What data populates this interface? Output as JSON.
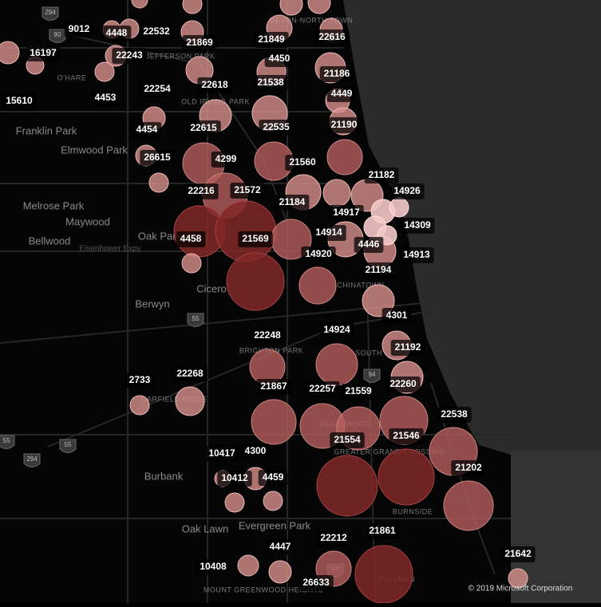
{
  "map": {
    "places": [
      "Franklin Park",
      "Elmwood Park",
      "Melrose Park",
      "Maywood",
      "Bellwood",
      "Oak Park",
      "Berwyn",
      "Cicero",
      "Burbank",
      "Oak Lawn",
      "Evergreen Park",
      "O'HARE",
      "JEFFERSON PARK",
      "OLD IRVING PARK",
      "CHINATOWN",
      "BRIGHTON PARK",
      "GARFIELD RIDGE",
      "ENGLEWOOD",
      "GREATER GRAND CROSSING",
      "BURNSIDE",
      "PULLMAN",
      "SOUTH",
      "Eisenhower Expy",
      "MOUNT GREENWOOD HEIGHTS",
      "DEVON-NORTH TOWN"
    ],
    "shields": [
      "294",
      "90",
      "55",
      "94",
      "55",
      "294",
      "55",
      "57"
    ],
    "bubble_labels": [
      "9012",
      "4448",
      "22532",
      "21869",
      "21849",
      "22616",
      "16197",
      "22243",
      "4450",
      "21186",
      "15610",
      "4453",
      "22254",
      "22618",
      "21538",
      "4449",
      "21190",
      "4454",
      "22615",
      "22535",
      "26615",
      "4299",
      "21560",
      "21182",
      "22216",
      "21572",
      "14926",
      "21184",
      "14917",
      "14309",
      "4458",
      "21569",
      "14914",
      "4446",
      "14920",
      "14913",
      "21194",
      "4301",
      "22248",
      "14924",
      "21192",
      "22268",
      "2733",
      "21867",
      "22257",
      "21559",
      "22260",
      "22538",
      "21554",
      "21546",
      "10417",
      "4300",
      "21202",
      "10412",
      "4459",
      "21861",
      "22212",
      "4447",
      "21642",
      "10408",
      "26633"
    ],
    "copyright": "© 2019 Microsoft Corporation"
  }
}
